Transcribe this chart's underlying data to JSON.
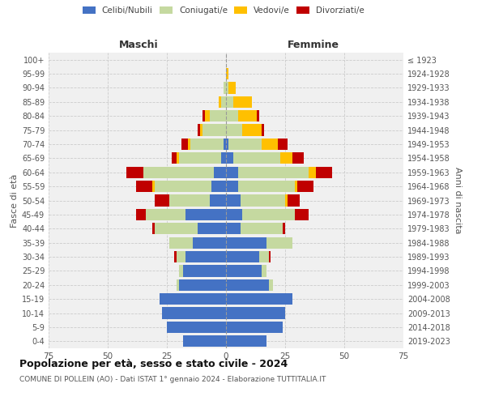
{
  "age_groups": [
    "0-4",
    "5-9",
    "10-14",
    "15-19",
    "20-24",
    "25-29",
    "30-34",
    "35-39",
    "40-44",
    "45-49",
    "50-54",
    "55-59",
    "60-64",
    "65-69",
    "70-74",
    "75-79",
    "80-84",
    "85-89",
    "90-94",
    "95-99",
    "100+"
  ],
  "birth_years": [
    "2019-2023",
    "2014-2018",
    "2009-2013",
    "2004-2008",
    "1999-2003",
    "1994-1998",
    "1989-1993",
    "1984-1988",
    "1979-1983",
    "1974-1978",
    "1969-1973",
    "1964-1968",
    "1959-1963",
    "1954-1958",
    "1949-1953",
    "1944-1948",
    "1939-1943",
    "1934-1938",
    "1929-1933",
    "1924-1928",
    "≤ 1923"
  ],
  "males": {
    "celibi": [
      18,
      25,
      27,
      28,
      20,
      18,
      17,
      14,
      12,
      17,
      7,
      6,
      5,
      2,
      1,
      0,
      0,
      0,
      0,
      0,
      0
    ],
    "coniugati": [
      0,
      0,
      0,
      0,
      1,
      2,
      4,
      10,
      18,
      17,
      17,
      24,
      30,
      18,
      14,
      10,
      7,
      2,
      1,
      0,
      0
    ],
    "vedovi": [
      0,
      0,
      0,
      0,
      0,
      0,
      0,
      0,
      0,
      0,
      0,
      1,
      0,
      1,
      1,
      1,
      2,
      1,
      0,
      0,
      0
    ],
    "divorziati": [
      0,
      0,
      0,
      0,
      0,
      0,
      1,
      0,
      1,
      4,
      6,
      7,
      7,
      2,
      3,
      1,
      1,
      0,
      0,
      0,
      0
    ]
  },
  "females": {
    "nubili": [
      17,
      24,
      25,
      28,
      18,
      15,
      14,
      17,
      6,
      7,
      6,
      5,
      5,
      3,
      1,
      0,
      0,
      0,
      0,
      0,
      0
    ],
    "coniugate": [
      0,
      0,
      0,
      0,
      2,
      2,
      4,
      11,
      18,
      22,
      19,
      24,
      30,
      20,
      14,
      7,
      5,
      3,
      1,
      0,
      0
    ],
    "vedove": [
      0,
      0,
      0,
      0,
      0,
      0,
      0,
      0,
      0,
      0,
      1,
      1,
      3,
      5,
      7,
      8,
      8,
      8,
      3,
      1,
      0
    ],
    "divorziate": [
      0,
      0,
      0,
      0,
      0,
      0,
      1,
      0,
      1,
      6,
      5,
      7,
      7,
      5,
      4,
      1,
      1,
      0,
      0,
      0,
      0
    ]
  },
  "colors": {
    "celibi": "#4472c4",
    "coniugati": "#c5d9a0",
    "vedovi": "#ffc000",
    "divorziati": "#c00000"
  },
  "title": "Popolazione per età, sesso e stato civile - 2024",
  "subtitle": "COMUNE DI POLLEIN (AO) - Dati ISTAT 1° gennaio 2024 - Elaborazione TUTTITALIA.IT",
  "xlabel_left": "Maschi",
  "xlabel_right": "Femmine",
  "ylabel_left": "Fasce di età",
  "ylabel_right": "Anni di nascita",
  "xlim": 75,
  "bg_color": "#f0f0f0",
  "grid_color": "#cccccc"
}
